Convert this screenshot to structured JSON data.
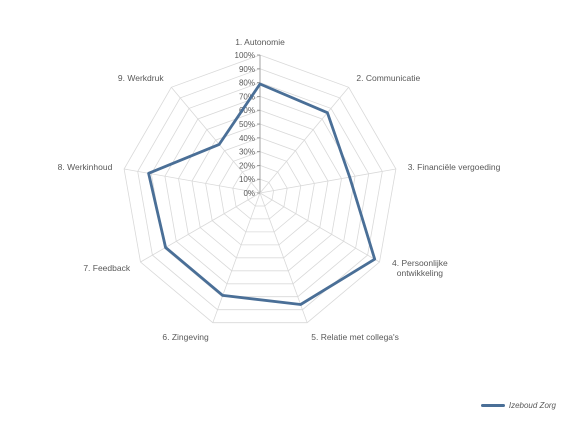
{
  "chart_data": {
    "type": "radar",
    "categories": [
      "1. Autonomie",
      "2. Communicatie",
      "3. Financiële vergoeding",
      "4. Persoonlijke ontwikkeling",
      "5. Relatie met collega's",
      "6. Zingeving",
      "7. Feedback",
      "8. Werkinhoud",
      "9. Werkdruk"
    ],
    "category_lines": [
      [
        "1. Autonomie"
      ],
      [
        "2. Communicatie"
      ],
      [
        "3. Financiële vergoeding"
      ],
      [
        "4. Persoonlijke",
        "ontwikkeling"
      ],
      [
        "5. Relatie met collega's"
      ],
      [
        "6. Zingeving"
      ],
      [
        "7. Feedback"
      ],
      [
        "8. Werkinhoud"
      ],
      [
        "9. Werkdruk"
      ]
    ],
    "tick_labels": [
      "0%",
      "10%",
      "20%",
      "30%",
      "40%",
      "50%",
      "60%",
      "70%",
      "80%",
      "90%",
      "100%"
    ],
    "ylim": [
      0,
      100
    ],
    "series": [
      {
        "name": "Izeboud Zorg",
        "values": [
          79,
          76,
          66,
          96,
          86,
          79,
          79,
          82,
          46
        ],
        "color": "#4a6f97"
      }
    ],
    "grid": true,
    "legend_position": "bottom-right"
  }
}
